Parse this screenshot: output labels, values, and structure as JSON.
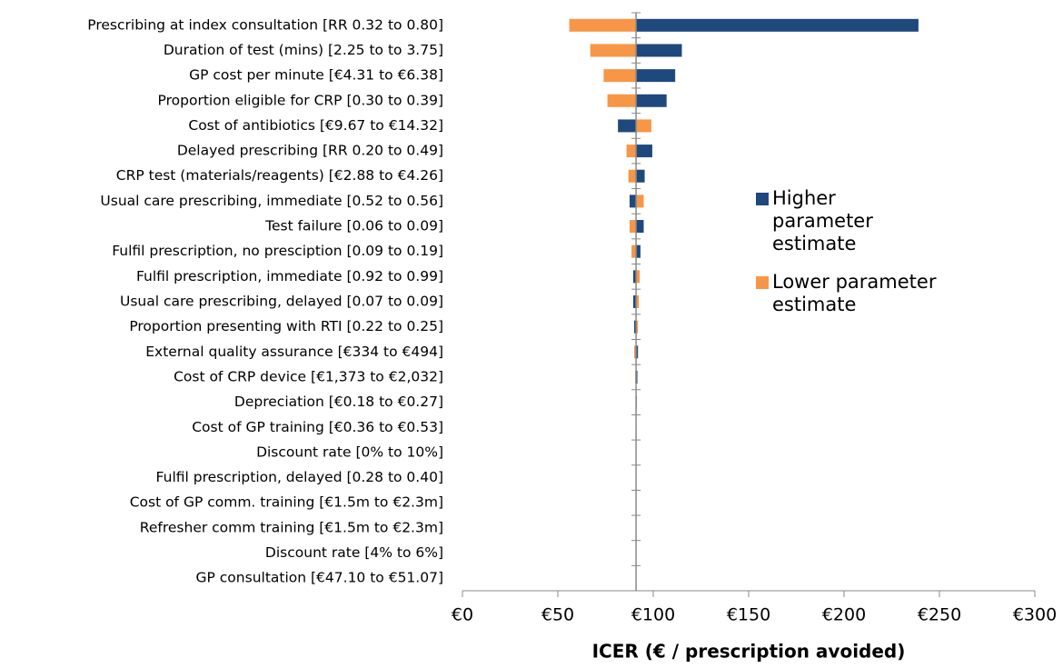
{
  "chart_data": {
    "type": "tornado",
    "x_label": "ICER (€ / prescription avoided)",
    "categories": [
      "Prescribing at index consultation [RR 0.32 to 0.80]",
      "Duration of test (mins) [2.25 to to 3.75]",
      "GP cost per minute [€4.31 to €6.38]",
      "Proportion eligible for CRP [0.30 to 0.39]",
      "Cost of antibiotics [€9.67 to €14.32]",
      "Delayed prescribing  [RR 0.20 to 0.49]",
      "CRP test (materials/reagents) [€2.88 to €4.26]",
      "Usual care prescribing, immediate [0.52 to 0.56]",
      "Test failure [0.06 to 0.09]",
      "Fulfil prescription, no presciption [0.09 to 0.19]",
      "Fulfil prescription, immediate [0.92 to 0.99]",
      "Usual care prescribing, delayed [0.07 to 0.09]",
      "Proportion presenting with RTI [0.22 to 0.25]",
      "External quality assurance [€334 to €494]",
      "Cost of CRP device [€1,373 to €2,032]",
      "Depreciation [€0.18 to €0.27]",
      "Cost of GP training [€0.36 to €0.53]",
      "Discount rate [0% to 10%]",
      "Fulfil prescription, delayed [0.28 to 0.40]",
      "Cost of GP comm. training [€1.5m to €2.3m]",
      "Refresher comm training  [€1.5m to €2.3m]",
      "Discount rate [4% to 6%]",
      "GP consultation [€47.10 to €51.07]"
    ],
    "base_value": 91,
    "series": [
      {
        "name": "Higher parameter estimate",
        "color": "#1f497d",
        "values": [
          239,
          115,
          111.5,
          107,
          81.5,
          99.5,
          95.5,
          87.6,
          95,
          93.3,
          89.5,
          89.5,
          90,
          92,
          91.7,
          91.4,
          91.2,
          91,
          91,
          91,
          91,
          91,
          91
        ]
      },
      {
        "name": "Lower parameter estimate",
        "color": "#f79646",
        "values": [
          56,
          67,
          74,
          76,
          99,
          86,
          87,
          95,
          87.6,
          88.6,
          92.9,
          92.4,
          92,
          90,
          90.5,
          90.7,
          90.8,
          91,
          91,
          91,
          91,
          91,
          91
        ]
      }
    ],
    "xlim": [
      0,
      300
    ],
    "xticks": [
      {
        "value": 0,
        "label": "€0"
      },
      {
        "value": 50,
        "label": "€50"
      },
      {
        "value": 100,
        "label": "€100"
      },
      {
        "value": 150,
        "label": "€150"
      },
      {
        "value": 200,
        "label": "€200"
      },
      {
        "value": 250,
        "label": "€250"
      },
      {
        "value": 300,
        "label": "€300"
      }
    ],
    "legend": "right"
  }
}
